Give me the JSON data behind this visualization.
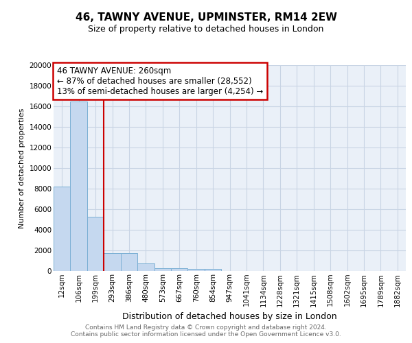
{
  "title": "46, TAWNY AVENUE, UPMINSTER, RM14 2EW",
  "subtitle": "Size of property relative to detached houses in London",
  "xlabel": "Distribution of detached houses by size in London",
  "ylabel": "Number of detached properties",
  "categories": [
    "12sqm",
    "106sqm",
    "199sqm",
    "293sqm",
    "386sqm",
    "480sqm",
    "573sqm",
    "667sqm",
    "760sqm",
    "854sqm",
    "947sqm",
    "1041sqm",
    "1134sqm",
    "1228sqm",
    "1321sqm",
    "1415sqm",
    "1508sqm",
    "1602sqm",
    "1695sqm",
    "1789sqm",
    "1882sqm"
  ],
  "values": [
    8200,
    16500,
    5300,
    1750,
    1750,
    750,
    300,
    240,
    200,
    180,
    0,
    0,
    0,
    0,
    0,
    0,
    0,
    0,
    0,
    0,
    0
  ],
  "bar_color": "#c5d8ef",
  "bar_edge_color": "#7aafd4",
  "grid_color": "#c8d4e4",
  "bg_color": "#eaf0f8",
  "red_line_x": 2.5,
  "annotation_title": "46 TAWNY AVENUE: 260sqm",
  "annotation_line1": "← 87% of detached houses are smaller (28,552)",
  "annotation_line2": "13% of semi-detached houses are larger (4,254) →",
  "annotation_border": "#cc0000",
  "footer1": "Contains HM Land Registry data © Crown copyright and database right 2024.",
  "footer2": "Contains public sector information licensed under the Open Government Licence v3.0.",
  "ylim": [
    0,
    20000
  ],
  "yticks": [
    0,
    2000,
    4000,
    6000,
    8000,
    10000,
    12000,
    14000,
    16000,
    18000,
    20000
  ],
  "title_fontsize": 11,
  "subtitle_fontsize": 9,
  "ylabel_fontsize": 8,
  "xlabel_fontsize": 9,
  "tick_fontsize": 7.5,
  "ann_fontsize": 8.5,
  "footer_fontsize": 6.5
}
